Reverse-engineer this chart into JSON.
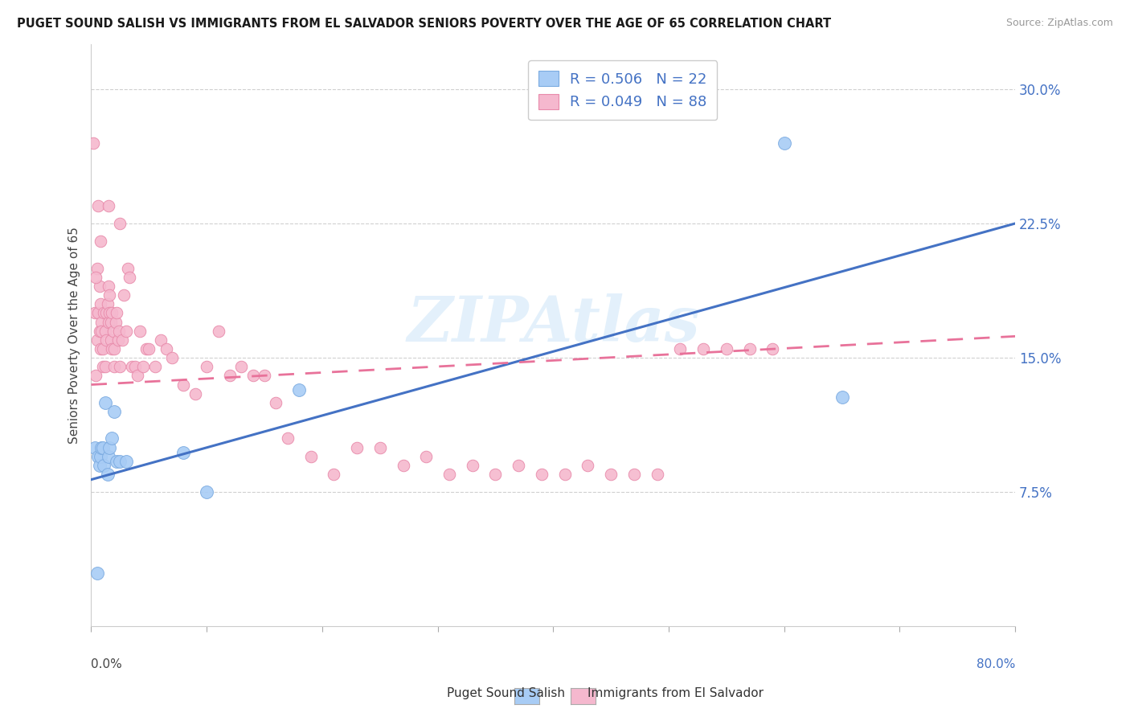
{
  "title": "PUGET SOUND SALISH VS IMMIGRANTS FROM EL SALVADOR SENIORS POVERTY OVER THE AGE OF 65 CORRELATION CHART",
  "source": "Source: ZipAtlas.com",
  "ylabel": "Seniors Poverty Over the Age of 65",
  "ytick_labels": [
    "7.5%",
    "15.0%",
    "22.5%",
    "30.0%"
  ],
  "ytick_values": [
    0.075,
    0.15,
    0.225,
    0.3
  ],
  "xlim": [
    0.0,
    0.8
  ],
  "ylim": [
    0.0,
    0.325
  ],
  "series1_name": "Puget Sound Salish",
  "series1_marker_color": "#a8ccf5",
  "series1_edge_color": "#7aaae0",
  "series1_line_color": "#4472c4",
  "series1_R": 0.506,
  "series1_N": 22,
  "series2_name": "Immigrants from El Salvador",
  "series2_marker_color": "#f5b8ce",
  "series2_edge_color": "#e88aaa",
  "series2_line_color": "#e8729a",
  "series2_R": 0.049,
  "series2_N": 88,
  "watermark": "ZIPAtlas",
  "legend_R1": "R = 0.506",
  "legend_N1": "N = 22",
  "legend_R2": "R = 0.049",
  "legend_N2": "N = 88",
  "blue_line_x0": 0.0,
  "blue_line_y0": 0.082,
  "blue_line_x1": 0.8,
  "blue_line_y1": 0.225,
  "pink_line_x0": 0.0,
  "pink_line_y0": 0.135,
  "pink_line_x1": 0.8,
  "pink_line_y1": 0.162,
  "s1_x": [
    0.003,
    0.005,
    0.006,
    0.007,
    0.008,
    0.009,
    0.01,
    0.011,
    0.012,
    0.014,
    0.015,
    0.016,
    0.018,
    0.02,
    0.022,
    0.025,
    0.03,
    0.08,
    0.1,
    0.18,
    0.6,
    0.65
  ],
  "s1_y": [
    0.1,
    0.03,
    0.095,
    0.09,
    0.095,
    0.1,
    0.1,
    0.09,
    0.125,
    0.085,
    0.095,
    0.1,
    0.105,
    0.12,
    0.092,
    0.092,
    0.092,
    0.097,
    0.075,
    0.132,
    0.27,
    0.128
  ],
  "s2_x": [
    0.003,
    0.004,
    0.005,
    0.005,
    0.006,
    0.007,
    0.007,
    0.008,
    0.008,
    0.009,
    0.009,
    0.01,
    0.01,
    0.011,
    0.012,
    0.012,
    0.013,
    0.013,
    0.014,
    0.015,
    0.015,
    0.016,
    0.016,
    0.017,
    0.017,
    0.018,
    0.018,
    0.019,
    0.02,
    0.02,
    0.021,
    0.022,
    0.023,
    0.024,
    0.025,
    0.027,
    0.028,
    0.03,
    0.032,
    0.033,
    0.035,
    0.038,
    0.04,
    0.042,
    0.045,
    0.048,
    0.05,
    0.055,
    0.06,
    0.065,
    0.07,
    0.08,
    0.09,
    0.1,
    0.11,
    0.12,
    0.13,
    0.14,
    0.15,
    0.16,
    0.17,
    0.19,
    0.21,
    0.23,
    0.25,
    0.27,
    0.29,
    0.31,
    0.33,
    0.35,
    0.37,
    0.39,
    0.41,
    0.43,
    0.45,
    0.47,
    0.49,
    0.51,
    0.53,
    0.55,
    0.57,
    0.59,
    0.002,
    0.004,
    0.006,
    0.008,
    0.015,
    0.025
  ],
  "s2_y": [
    0.175,
    0.14,
    0.16,
    0.2,
    0.175,
    0.165,
    0.19,
    0.155,
    0.18,
    0.17,
    0.165,
    0.155,
    0.145,
    0.175,
    0.165,
    0.145,
    0.16,
    0.175,
    0.18,
    0.19,
    0.17,
    0.185,
    0.175,
    0.17,
    0.16,
    0.175,
    0.155,
    0.165,
    0.155,
    0.145,
    0.17,
    0.175,
    0.16,
    0.165,
    0.145,
    0.16,
    0.185,
    0.165,
    0.2,
    0.195,
    0.145,
    0.145,
    0.14,
    0.165,
    0.145,
    0.155,
    0.155,
    0.145,
    0.16,
    0.155,
    0.15,
    0.135,
    0.13,
    0.145,
    0.165,
    0.14,
    0.145,
    0.14,
    0.14,
    0.125,
    0.105,
    0.095,
    0.085,
    0.1,
    0.1,
    0.09,
    0.095,
    0.085,
    0.09,
    0.085,
    0.09,
    0.085,
    0.085,
    0.09,
    0.085,
    0.085,
    0.085,
    0.155,
    0.155,
    0.155,
    0.155,
    0.155,
    0.27,
    0.195,
    0.235,
    0.215,
    0.235,
    0.225
  ]
}
